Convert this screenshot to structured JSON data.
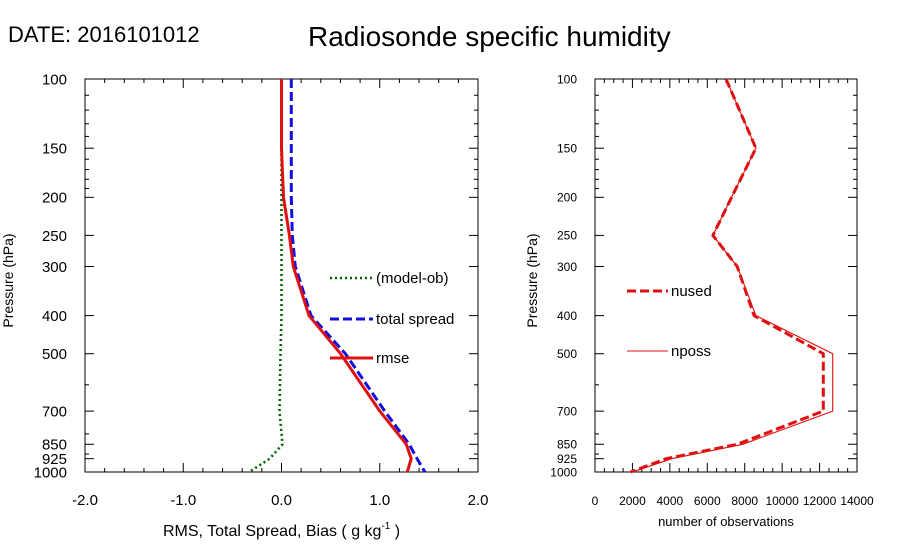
{
  "header": {
    "date_label": "DATE: 2016101012",
    "title": "Radiosonde specific humidity"
  },
  "chart_data": [
    {
      "type": "line",
      "ylabel": "Pressure (hPa)",
      "xlabel": "RMS, Total Spread, Bias ( g kg",
      "xlabel_sup": "-1",
      "xlabel_tail": " )",
      "y_scale": "log",
      "y_reversed": true,
      "xlim": [
        -2.0,
        2.0
      ],
      "ylim": [
        1000,
        100
      ],
      "x_ticks": [
        -2.0,
        -1.0,
        0.0,
        1.0,
        2.0
      ],
      "x_tick_labels": [
        "-2.0",
        "-1.0",
        "0.0",
        "1.0",
        "2.0"
      ],
      "y_ticks": [
        100,
        150,
        200,
        250,
        300,
        400,
        500,
        700,
        850,
        925,
        1000
      ],
      "y_tick_labels": [
        "100",
        "150",
        "200",
        "250",
        "300",
        "400",
        "500",
        "700",
        "850",
        "925",
        "1000"
      ],
      "legend_position": "center-right",
      "series": [
        {
          "name": "(model-ob)",
          "color": "#006400",
          "style": "dotted",
          "x": [
            0.0,
            0.0,
            0.0,
            0.0,
            0.0,
            0.0,
            -0.01,
            -0.02,
            0.01,
            -0.12,
            -0.33
          ],
          "y": [
            100,
            150,
            200,
            250,
            300,
            400,
            500,
            700,
            850,
            925,
            1000
          ]
        },
        {
          "name": "total spread",
          "color": "#1010e0",
          "style": "dashed",
          "x": [
            0.1,
            0.1,
            0.1,
            0.11,
            0.14,
            0.3,
            0.65,
            1.05,
            1.3,
            1.38,
            1.46
          ],
          "y": [
            100,
            150,
            200,
            250,
            300,
            400,
            500,
            700,
            850,
            925,
            1000
          ]
        },
        {
          "name": "rmse",
          "color": "#e01010",
          "style": "solid",
          "x": [
            0.0,
            0.0,
            0.02,
            0.08,
            0.12,
            0.28,
            0.6,
            1.0,
            1.27,
            1.32,
            1.28
          ],
          "y": [
            100,
            150,
            200,
            250,
            300,
            400,
            500,
            700,
            850,
            925,
            1000
          ]
        }
      ]
    },
    {
      "type": "line",
      "ylabel": "Pressure (hPa)",
      "xlabel": "number of observations",
      "y_scale": "log",
      "y_reversed": true,
      "xlim": [
        0,
        14000
      ],
      "ylim": [
        1000,
        100
      ],
      "x_ticks": [
        0,
        2000,
        4000,
        6000,
        8000,
        10000,
        12000,
        14000
      ],
      "x_tick_labels": [
        "0",
        "2000",
        "4000",
        "6000",
        "8000",
        "10000",
        "12000",
        "14000"
      ],
      "y_ticks": [
        100,
        150,
        200,
        250,
        300,
        400,
        500,
        700,
        850,
        925,
        1000
      ],
      "y_tick_labels": [
        "100",
        "150",
        "200",
        "250",
        "300",
        "400",
        "500",
        "700",
        "850",
        "925",
        "1000"
      ],
      "legend_position": "center-left",
      "series": [
        {
          "name": "nused",
          "color": "#e01010",
          "style": "dashed",
          "x": [
            7000,
            8600,
            7300,
            6300,
            7600,
            8500,
            12200,
            12200,
            7600,
            3800,
            1900
          ],
          "y": [
            100,
            150,
            200,
            250,
            300,
            400,
            500,
            700,
            850,
            925,
            1000
          ]
        },
        {
          "name": "nposs",
          "color": "#e01010",
          "style": "thin",
          "x": [
            7000,
            8600,
            7300,
            6300,
            7600,
            8600,
            12700,
            12700,
            7900,
            4100,
            2000
          ],
          "y": [
            100,
            150,
            200,
            250,
            300,
            400,
            500,
            700,
            850,
            925,
            1000
          ]
        }
      ]
    }
  ]
}
